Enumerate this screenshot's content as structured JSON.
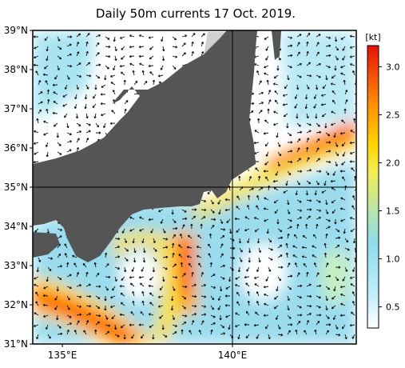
{
  "title": "Daily 50m currents 17 Oct. 2019.",
  "map": {
    "lat_range": [
      31,
      39
    ],
    "lon_range": [
      134.13,
      143.64
    ],
    "lat_ticks": [
      {
        "value": 31,
        "label": "31°N"
      },
      {
        "value": 32,
        "label": "32°N"
      },
      {
        "value": 33,
        "label": "33°N"
      },
      {
        "value": 34,
        "label": "34°N"
      },
      {
        "value": 35,
        "label": "35°N"
      },
      {
        "value": 36,
        "label": "36°N"
      },
      {
        "value": 37,
        "label": "37°N"
      },
      {
        "value": 38,
        "label": "38°N"
      },
      {
        "value": 39,
        "label": "39°N"
      }
    ],
    "lon_ticks": [
      {
        "value": 135,
        "label": "135°E"
      },
      {
        "value": 140,
        "label": "140°E"
      }
    ]
  },
  "colorbar": {
    "unit": "[kt]",
    "range": [
      0.28,
      3.22
    ],
    "ticks": [
      {
        "value": 0.5,
        "label": "0.5"
      },
      {
        "value": 1.0,
        "label": "1.0"
      },
      {
        "value": 1.5,
        "label": "1.5"
      },
      {
        "value": 2.0,
        "label": "2.0"
      },
      {
        "value": 2.5,
        "label": "2.5"
      },
      {
        "value": 3.0,
        "label": "3.0"
      }
    ]
  }
}
